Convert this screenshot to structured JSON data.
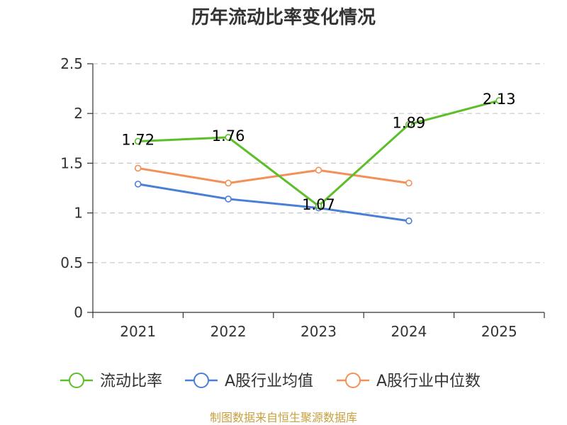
{
  "chart_data": {
    "type": "line",
    "title": "历年流动比率变化情况",
    "categories": [
      "2021",
      "2022",
      "2023",
      "2024",
      "2025"
    ],
    "ylim": [
      0,
      2.5
    ],
    "yticks": [
      "0",
      "0.5",
      "1",
      "1.5",
      "2",
      "2.5"
    ],
    "grid": true,
    "legend_position": "bottom",
    "series": [
      {
        "name": "流动比率",
        "color": "#5cbf2a",
        "values": [
          1.72,
          1.76,
          1.07,
          1.89,
          2.13
        ],
        "labels": [
          "1.72",
          "1.76",
          "1.07",
          "1.89",
          "2.13"
        ]
      },
      {
        "name": "A股行业均值",
        "color": "#4a7fd8",
        "values": [
          1.29,
          1.14,
          1.05,
          0.92,
          null
        ]
      },
      {
        "name": "A股行业中位数",
        "color": "#f39058",
        "values": [
          1.45,
          1.3,
          1.43,
          1.3,
          null
        ]
      }
    ],
    "source": "制图数据来自恒生聚源数据库"
  }
}
